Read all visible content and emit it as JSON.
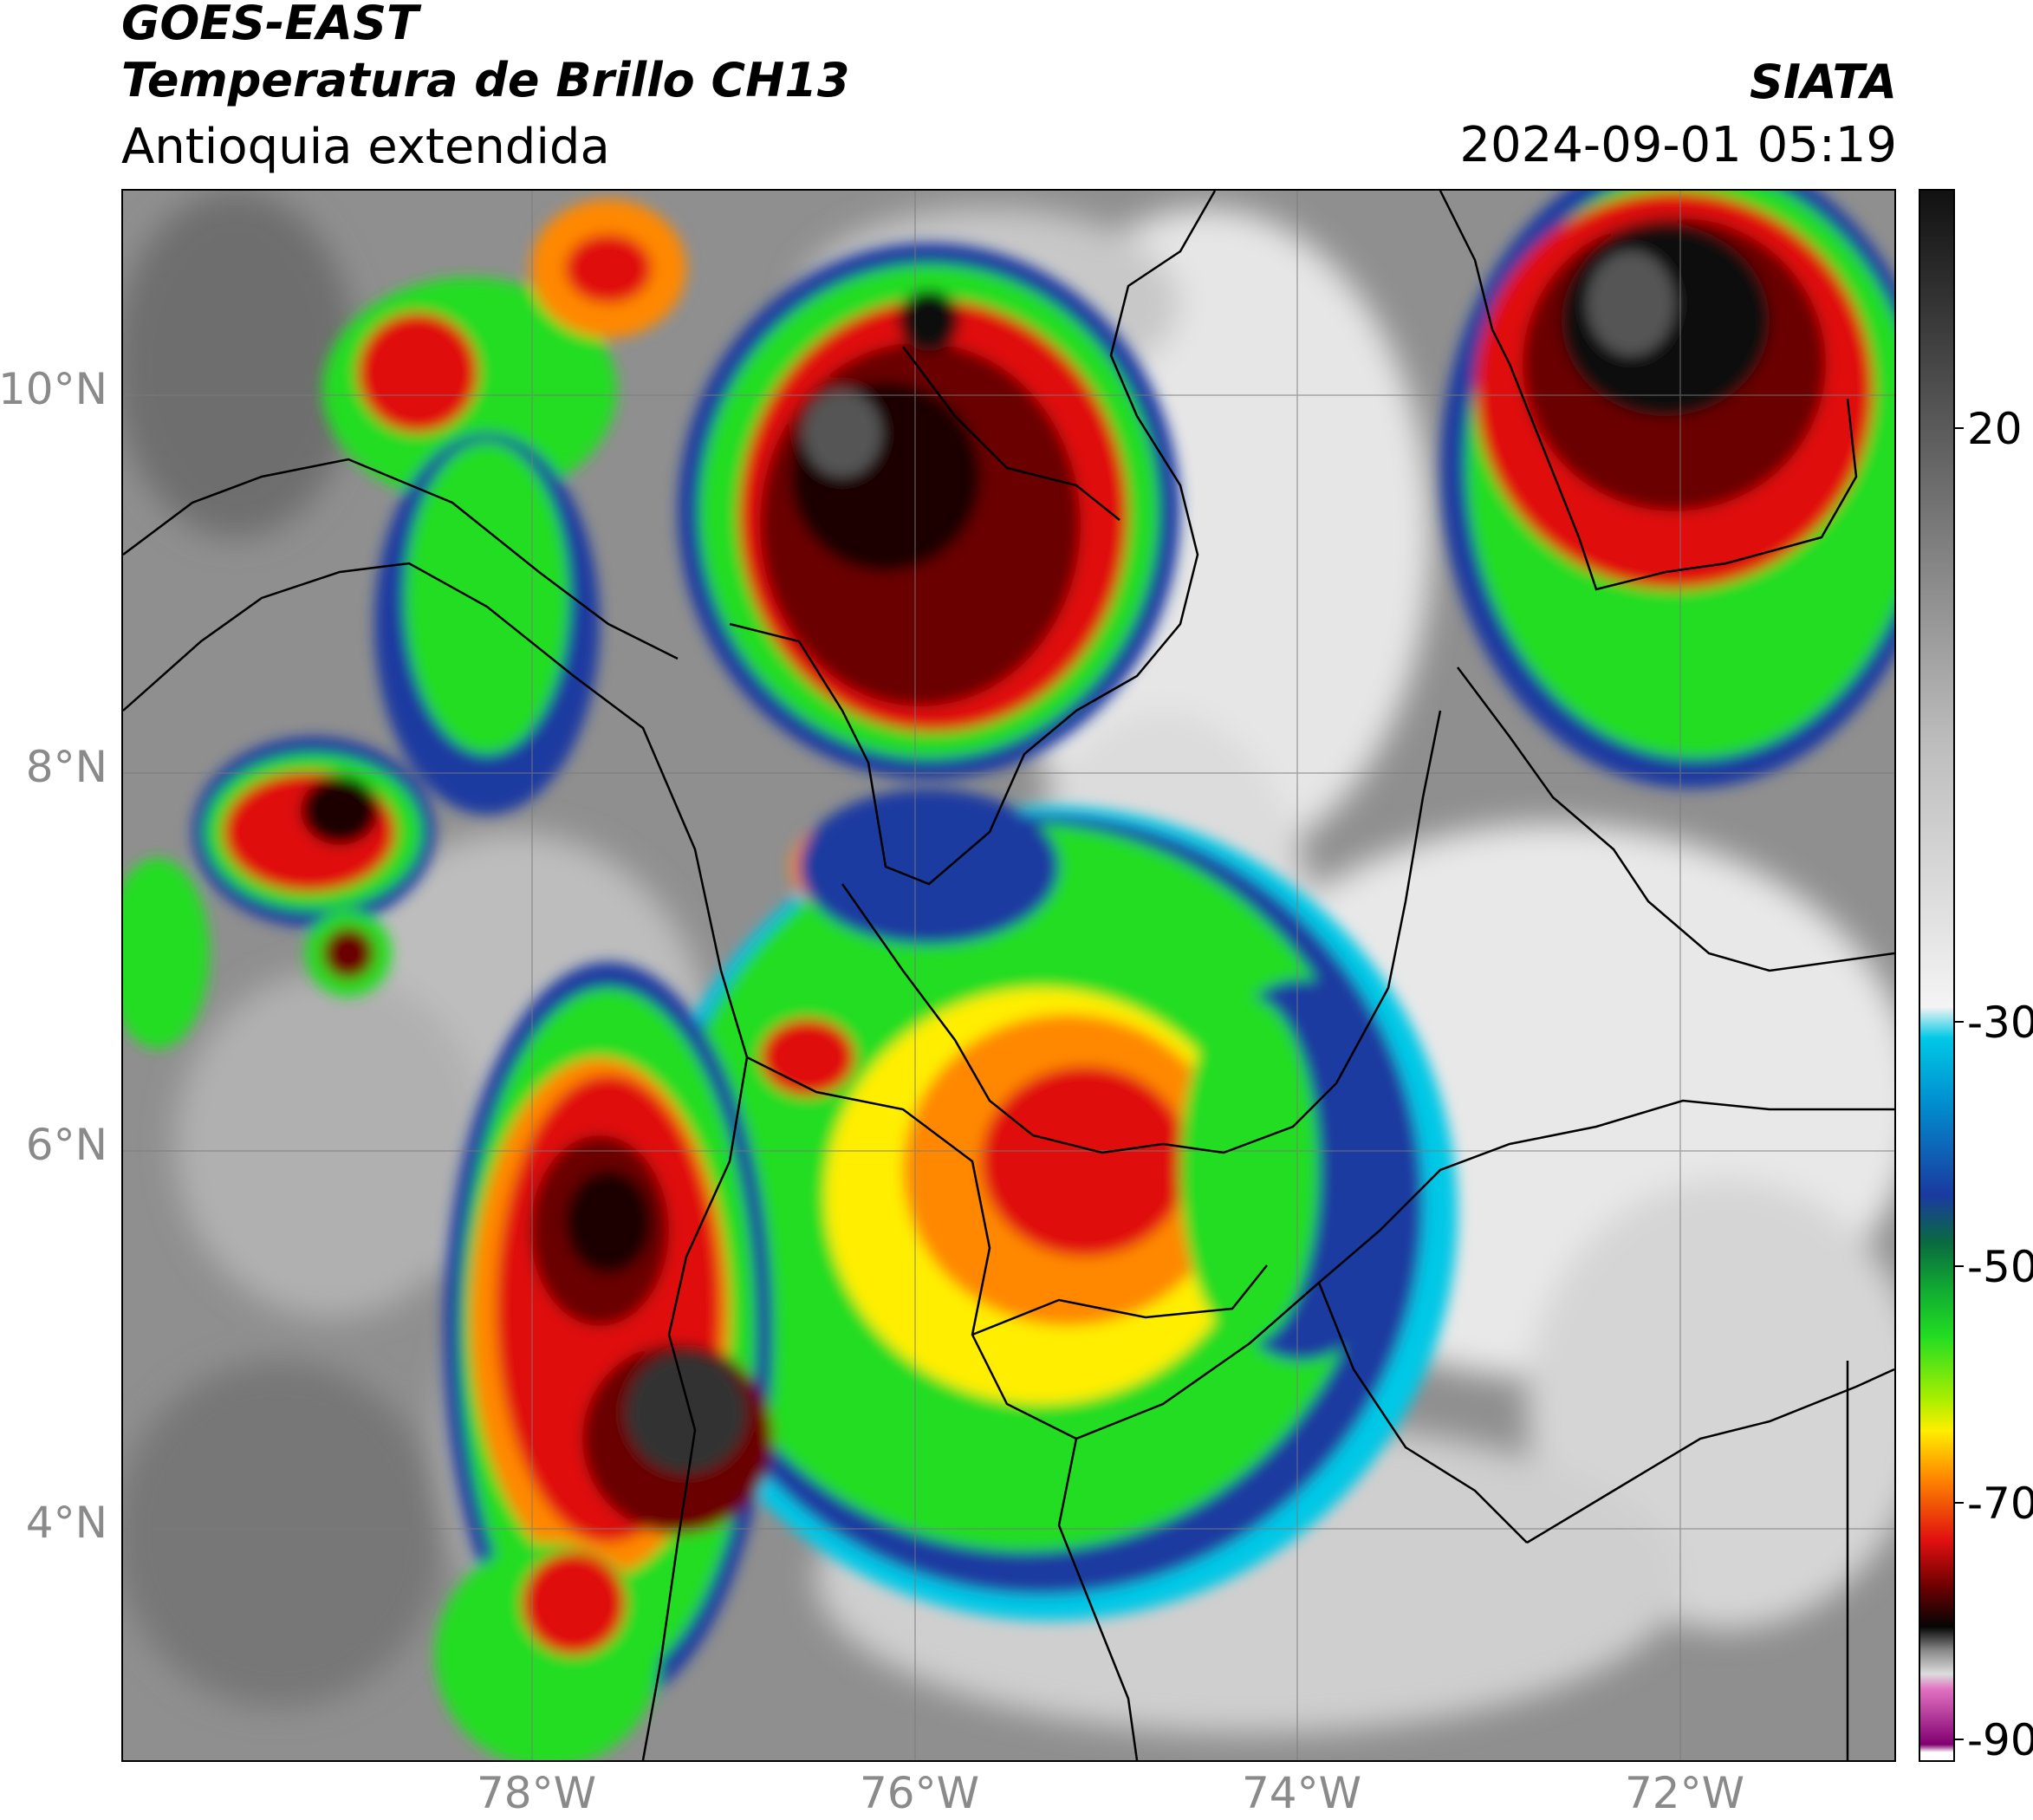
{
  "header": {
    "title_line1": "GOES-EAST",
    "title_line2": "Temperatura de Brillo CH13",
    "subtitle": "Antioquia extendida",
    "organization": "SIATA",
    "datetime": "2024-09-01 05:19"
  },
  "map": {
    "latitude_labels": [
      "10°N",
      "8°N",
      "6°N",
      "4°N"
    ],
    "longitude_labels": [
      "78°W",
      "76°W",
      "74°W",
      "72°W"
    ],
    "gridlines": true
  },
  "colorbar": {
    "tick_labels": [
      "20",
      "-30",
      "-50",
      "-70",
      "-90"
    ],
    "range": [
      -90,
      30
    ],
    "colors": {
      "warm_top": "#111111",
      "gray_light": "#f4f4f4",
      "cyan": "#00c8e6",
      "blue": "#1a3aa0",
      "dark_green": "#0a6a40",
      "green": "#22dd22",
      "yellow": "#ffee00",
      "orange": "#ff8800",
      "red": "#e01010",
      "dark_red": "#6a0000",
      "black": "#050505",
      "pink": "#e070c0",
      "purple": "#800070"
    }
  }
}
